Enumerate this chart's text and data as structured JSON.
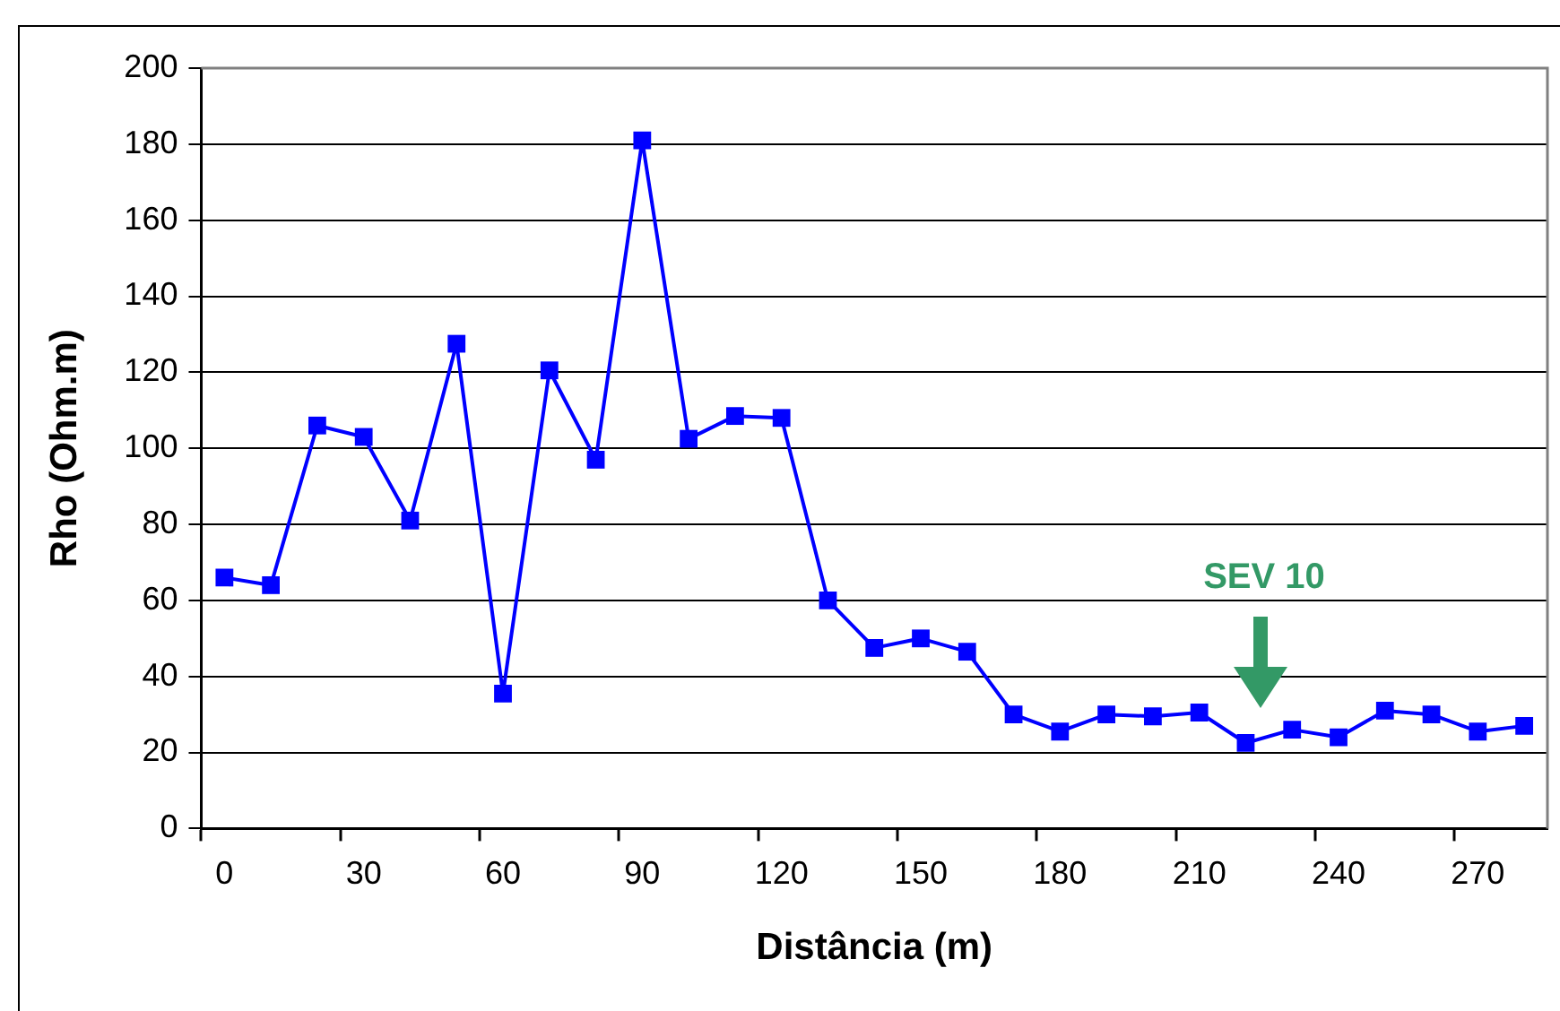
{
  "chart_data": {
    "type": "line",
    "xlabel": "Distância (m)",
    "ylabel": "Rho (Ohm.m)",
    "categories": [
      "0",
      null,
      null,
      "30",
      null,
      null,
      "60",
      null,
      null,
      "90",
      null,
      null,
      "120",
      null,
      null,
      "150",
      null,
      null,
      "180",
      null,
      null,
      "210",
      null,
      null,
      "240",
      null,
      null,
      "270",
      null
    ],
    "series": [
      {
        "color": "#0000ff",
        "values": [
          66,
          64,
          106,
          103,
          81,
          127.5,
          35.5,
          120.5,
          97,
          181,
          102.5,
          108.5,
          108,
          60,
          47.5,
          50,
          46.5,
          30,
          25.5,
          30,
          29.5,
          30.5,
          22.5,
          26,
          24,
          31,
          30,
          25.5,
          27
        ]
      }
    ],
    "ylim": [
      0,
      200
    ],
    "yticks": [
      0,
      20,
      40,
      60,
      80,
      100,
      120,
      140,
      160,
      180,
      200
    ],
    "grid": "y",
    "legend": false,
    "marker": "square",
    "line_style": "solid",
    "annotations": [
      "SEV 10"
    ]
  }
}
